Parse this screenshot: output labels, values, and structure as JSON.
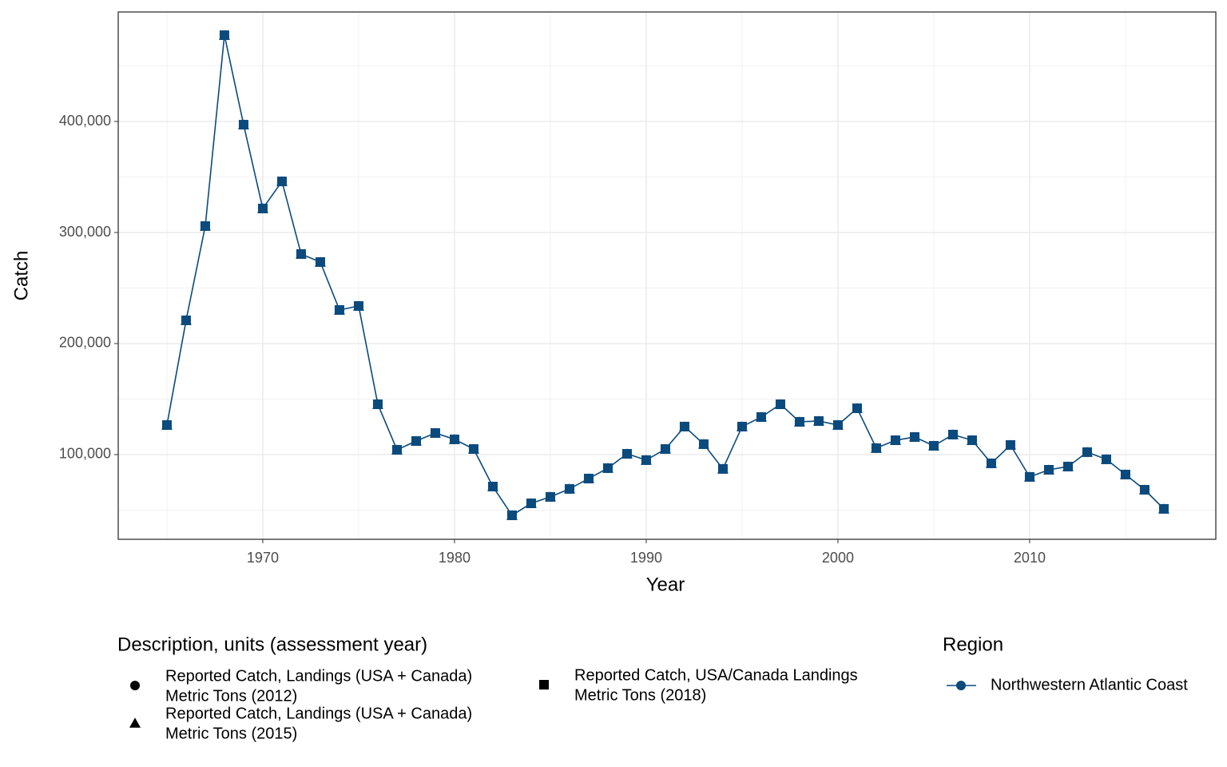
{
  "chart_data": {
    "type": "line",
    "x_label": "Year",
    "y_label": "Catch",
    "xlim": [
      1962.46,
      2019.71
    ],
    "ylim": [
      23700,
      498600
    ],
    "xticks": [
      1970,
      1980,
      1990,
      2000,
      2010
    ],
    "yticks": [
      {
        "value": 100000,
        "label": "100,000"
      },
      {
        "value": 200000,
        "label": "200,000"
      },
      {
        "value": 300000,
        "label": "300,000"
      },
      {
        "value": 400000,
        "label": "400,000"
      }
    ],
    "grid": true,
    "x": [
      1965,
      1966,
      1967,
      1968,
      1969,
      1970,
      1971,
      1972,
      1973,
      1974,
      1975,
      1976,
      1977,
      1978,
      1979,
      1980,
      1981,
      1982,
      1983,
      1984,
      1985,
      1986,
      1987,
      1988,
      1989,
      1990,
      1991,
      1992,
      1993,
      1994,
      1995,
      1996,
      1997,
      1998,
      1999,
      2000,
      2001,
      2002,
      2003,
      2004,
      2005,
      2006,
      2007,
      2008,
      2009,
      2010,
      2011,
      2012,
      2013,
      2014,
      2015,
      2016,
      2017
    ],
    "series": [
      {
        "name": "Northwestern Atlantic Coast",
        "color": "#0b4a7d",
        "values": [
          126600,
          220900,
          305800,
          477700,
          397100,
          321600,
          346000,
          280600,
          273400,
          230200,
          233800,
          145300,
          104300,
          112200,
          119400,
          113700,
          105000,
          71200,
          45300,
          56100,
          61900,
          69100,
          78400,
          87800,
          100700,
          95000,
          105000,
          125200,
          109400,
          87100,
          125200,
          133800,
          145300,
          129500,
          130200,
          126600,
          141700,
          105800,
          112900,
          115800,
          107900,
          118000,
          112900,
          92100,
          108600,
          79900,
          86300,
          89200,
          102200,
          95700,
          82000,
          68300,
          51100
        ]
      }
    ],
    "shape_legend": {
      "title": "Description, units (assessment year)",
      "items": [
        {
          "shape": "circle",
          "label": [
            "Reported Catch, Landings (USA + Canada)",
            "Metric Tons (2012)"
          ]
        },
        {
          "shape": "triangle",
          "label": [
            "Reported Catch, Landings (USA + Canada)",
            "Metric Tons (2015)"
          ]
        },
        {
          "shape": "square",
          "label": [
            "Reported Catch, USA/Canada Landings",
            "Metric Tons (2018)"
          ]
        }
      ]
    },
    "region_legend_title": "Region"
  }
}
